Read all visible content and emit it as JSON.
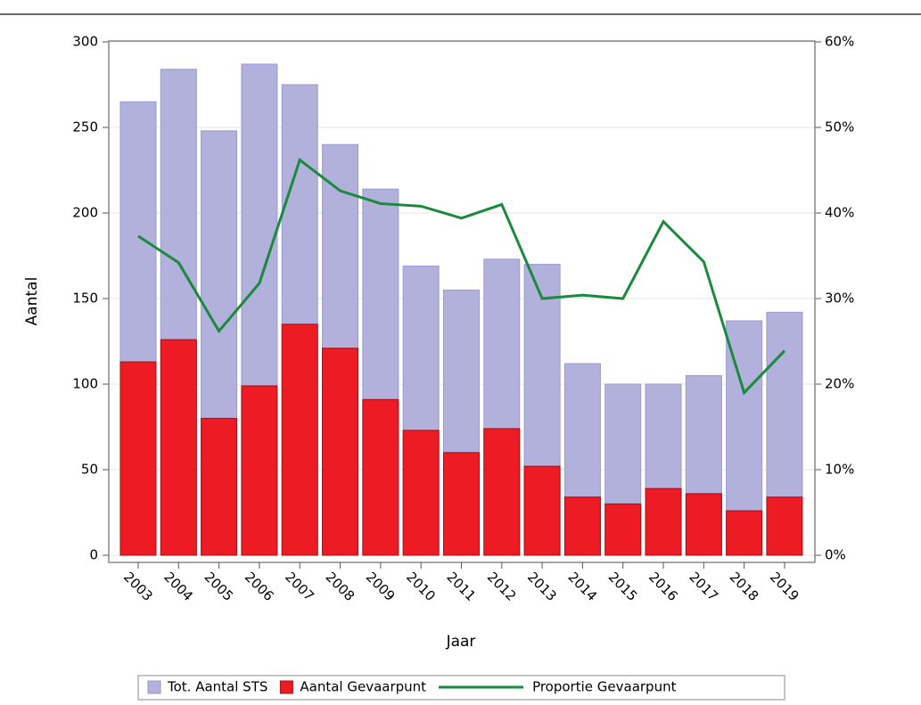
{
  "chart_data": {
    "type": "bar",
    "x_label": "Jaar",
    "y_label": "Aantal",
    "categories": [
      "2003",
      "2004",
      "2005",
      "2006",
      "2007",
      "2008",
      "2009",
      "2010",
      "2011",
      "2012",
      "2013",
      "2014",
      "2015",
      "2016",
      "2017",
      "2018",
      "2019"
    ],
    "series": [
      {
        "name": "Tot. Aantal STS",
        "type": "bar",
        "color": "#b1b1dc",
        "values": [
          265,
          284,
          248,
          287,
          275,
          240,
          214,
          169,
          155,
          173,
          170,
          112,
          100,
          100,
          105,
          137,
          142
        ]
      },
      {
        "name": "Aantal Gevaarpunt",
        "type": "bar",
        "color": "#ed1c24",
        "values": [
          113,
          126,
          80,
          99,
          135,
          121,
          91,
          73,
          60,
          74,
          52,
          34,
          30,
          39,
          36,
          26,
          34
        ]
      },
      {
        "name": "Proportie Gevaarpunt",
        "type": "line",
        "axis": "y2",
        "color": "#1a8a3c",
        "values": [
          37.3,
          34.2,
          26.2,
          31.8,
          46.2,
          42.6,
          41.1,
          40.8,
          39.4,
          41.0,
          30.0,
          30.4,
          30.0,
          39.0,
          34.3,
          19.0,
          23.9
        ]
      }
    ],
    "ylim": [
      0,
      300
    ],
    "yticks": [
      0,
      50,
      100,
      150,
      200,
      250,
      300
    ],
    "y2lim": [
      0,
      60
    ],
    "y2ticks": [
      {
        "value": 0,
        "label": "0%"
      },
      {
        "value": 10,
        "label": "10%"
      },
      {
        "value": 20,
        "label": "20%"
      },
      {
        "value": 30,
        "label": "30%"
      },
      {
        "value": 40,
        "label": "40%"
      },
      {
        "value": 50,
        "label": "50%"
      },
      {
        "value": 60,
        "label": "60%"
      }
    ],
    "grid": true,
    "legend": "bottom"
  }
}
